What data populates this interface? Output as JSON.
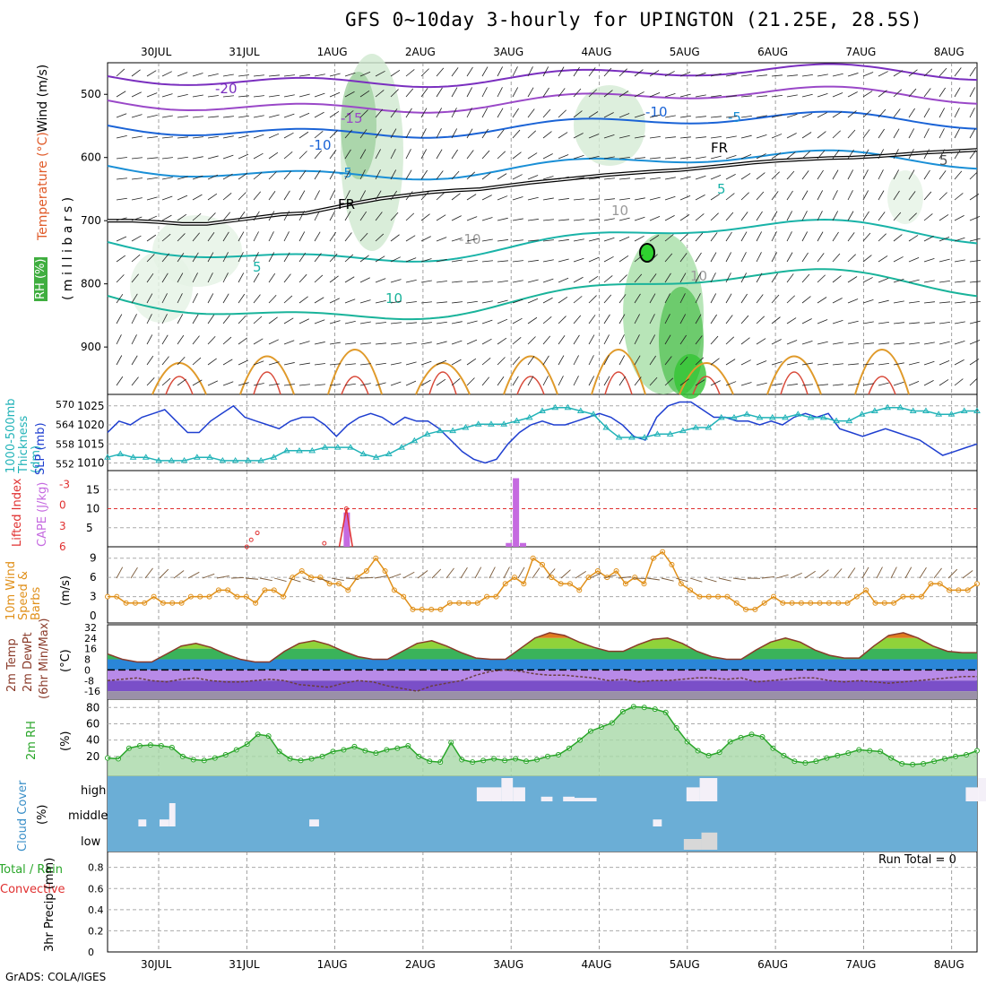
{
  "title": "GFS 0~10day 3-hourly for UPINGTON (21.25E, 28.5S)",
  "credit": "GrADS: COLA/IGES",
  "date_labels": [
    "30JUL",
    "31JUL",
    "1AUG",
    "2AUG",
    "3AUG",
    "4AUG",
    "5AUG",
    "6AUG",
    "7AUG",
    "8AUG"
  ],
  "chart_data": [
    {
      "type": "area",
      "panel": "upper-air",
      "ylabel_parts": [
        "RH (%)",
        "Temperature (°C)",
        "Wind (m/s)"
      ],
      "yunits": "( m i l l i b a r s )",
      "yticks": [
        500,
        600,
        700,
        800,
        900
      ],
      "contour_labels": [
        "-20",
        "-15",
        "-10",
        "-10",
        "-5",
        "-5",
        "5",
        "5",
        "5",
        "10",
        "FR",
        "FR",
        "10",
        "-10",
        "10"
      ],
      "freezing_level_mb": [
        700,
        700,
        702,
        705,
        705,
        700,
        695,
        690,
        688,
        680,
        672,
        665,
        660,
        655,
        652,
        650,
        645,
        640,
        636,
        632,
        628,
        625,
        622,
        620,
        616,
        612,
        608,
        605,
        603,
        601,
        600,
        598,
        595,
        592,
        590,
        588
      ],
      "ylim": [
        450,
        975
      ],
      "legend_colors": {
        "rh": "#55c455",
        "temp_cold": "#7a2fbf",
        "temp_mid": "#1a63d6",
        "temp_warm": "#19b3a8",
        "temp_hot": "#e09a2a",
        "freezing": "#000000"
      }
    },
    {
      "type": "line",
      "panel": "thickness-slp",
      "ylabel_left": "1000-500mb Thickness (dm)",
      "ylabel_right": "SLP (mb)",
      "thickness_ticks": [
        "570",
        "564",
        "558",
        "552"
      ],
      "slp_ticks": [
        "1025",
        "1020",
        "1015",
        "1010"
      ],
      "series": [
        {
          "name": "SLP (mb)",
          "color": "#1f3fd0",
          "values": [
            1018,
            1021,
            1020,
            1022,
            1023,
            1024,
            1021,
            1018,
            1018,
            1021,
            1023,
            1025,
            1022,
            1021,
            1020,
            1019,
            1021,
            1022,
            1022,
            1020,
            1017,
            1020,
            1022,
            1023,
            1022,
            1020,
            1022,
            1021,
            1021,
            1019,
            1016,
            1013,
            1011,
            1010,
            1011,
            1015,
            1018,
            1020,
            1021,
            1020,
            1020,
            1021,
            1022,
            1023,
            1022,
            1020,
            1017,
            1016,
            1022,
            1025,
            1026,
            1026,
            1024,
            1022,
            1022,
            1021,
            1021,
            1020,
            1021,
            1020,
            1022,
            1023,
            1022,
            1023,
            1019,
            1018,
            1017,
            1018,
            1019,
            1018,
            1017,
            1016,
            1014,
            1012,
            1013,
            1014,
            1015
          ]
        },
        {
          "name": "1000-500mb Thickness (dm)",
          "color": "#22b3b8",
          "values": [
            554,
            555,
            554,
            554,
            553,
            553,
            553,
            554,
            554,
            553,
            553,
            553,
            553,
            554,
            556,
            556,
            556,
            557,
            557,
            557,
            555,
            554,
            555,
            557,
            559,
            561,
            562,
            562,
            563,
            564,
            564,
            564,
            565,
            566,
            568,
            569,
            569,
            568,
            567,
            563,
            560,
            560,
            560,
            561,
            561,
            562,
            563,
            563,
            566,
            566,
            567,
            566,
            566,
            566,
            567,
            566,
            566,
            565,
            565,
            567,
            568,
            569,
            569,
            568,
            568,
            567,
            567,
            568,
            568
          ]
        }
      ]
    },
    {
      "type": "bar",
      "panel": "cape-li",
      "ylabel_left": "Lifted Index",
      "ylabel_right": "CAPE (J/kg)",
      "li_ticks": [
        "-3",
        "0",
        "3",
        "6"
      ],
      "cape_ticks": [
        "15",
        "10",
        "5"
      ],
      "cape_values": [
        0,
        0,
        0,
        0,
        0,
        0,
        0,
        0,
        0,
        0,
        0,
        0,
        0,
        0,
        0,
        0,
        0,
        0,
        0,
        0,
        0,
        0,
        0,
        0,
        0,
        0,
        0,
        0,
        0,
        0,
        0,
        0,
        0,
        0,
        0,
        0,
        0,
        0,
        0,
        0,
        0,
        0,
        0,
        0,
        0,
        0,
        0,
        0,
        0,
        0,
        0,
        0,
        0,
        0,
        0,
        0,
        0,
        0,
        0,
        0,
        0,
        0,
        0,
        0,
        0,
        0,
        0,
        0,
        0,
        0,
        0,
        0,
        0,
        0,
        0,
        0,
        0,
        0,
        0,
        0,
        0,
        0
      ],
      "cape_spikes": [
        {
          "x": 2.63,
          "value": 9
        },
        {
          "x": 4.47,
          "value": 1
        },
        {
          "x": 4.55,
          "value": 18
        },
        {
          "x": 4.63,
          "value": 1
        }
      ],
      "li_spikes": [
        {
          "x": 1.5,
          "value": 6
        },
        {
          "x": 1.55,
          "value": 5
        },
        {
          "x": 1.62,
          "value": 4
        },
        {
          "x": 2.38,
          "value": 5.5
        },
        {
          "x": 2.63,
          "value": 0.5
        }
      ]
    },
    {
      "type": "line",
      "panel": "wind",
      "ylabel": "10m Wind Speed & Barbs",
      "yunits": "(m/s)",
      "yticks": [
        "9",
        "6",
        "3",
        "0"
      ],
      "series": [
        {
          "name": "10m Wind Speed",
          "color": "#e0901a",
          "values": [
            3,
            3,
            2,
            2,
            2,
            3,
            2,
            2,
            2,
            3,
            3,
            3,
            4,
            4,
            3,
            3,
            2,
            4,
            4,
            3,
            6,
            7,
            6,
            6,
            5,
            5,
            4,
            6,
            7,
            9,
            7,
            4,
            3,
            1,
            1,
            1,
            1,
            2,
            2,
            2,
            2,
            3,
            3,
            5,
            6,
            5,
            9,
            8,
            6,
            5,
            5,
            4,
            6,
            7,
            6,
            7,
            5,
            6,
            5,
            9,
            10,
            8,
            5,
            4,
            3,
            3,
            3,
            3,
            2,
            1,
            1,
            2,
            3,
            2,
            2,
            2,
            2,
            2,
            2,
            2,
            2,
            3,
            4,
            2,
            2,
            2,
            3,
            3,
            3,
            5,
            5,
            4,
            4,
            4,
            5
          ]
        }
      ]
    },
    {
      "type": "area",
      "panel": "temperature",
      "ylabel_parts": [
        "2m Temp",
        "2m DewPt",
        "(6hr Min/Max)"
      ],
      "yunits": "(°C)",
      "yticks": [
        "32",
        "24",
        "16",
        "8",
        "0",
        "-8",
        "-16"
      ],
      "series": [
        {
          "name": "2m Temp",
          "color": "#8a3b2a",
          "values": [
            12,
            8,
            6,
            6,
            12,
            18,
            20,
            17,
            12,
            8,
            6,
            6,
            14,
            20,
            22,
            19,
            14,
            10,
            8,
            8,
            14,
            20,
            22,
            18,
            13,
            9,
            8,
            8,
            16,
            24,
            28,
            26,
            21,
            17,
            14,
            14,
            19,
            23,
            24,
            20,
            14,
            10,
            8,
            8,
            15,
            21,
            24,
            21,
            15,
            11,
            9,
            9,
            18,
            26,
            28,
            24,
            18,
            14,
            13,
            13
          ]
        },
        {
          "name": "2m DewPt",
          "color": "#6b3f3f",
          "values": [
            -8,
            -7,
            -6,
            -8,
            -9,
            -7,
            -6,
            -8,
            -9,
            -9,
            -8,
            -7,
            -8,
            -11,
            -12,
            -13,
            -10,
            -8,
            -9,
            -12,
            -14,
            -16,
            -12,
            -10,
            -8,
            -4,
            -1,
            0,
            -1,
            -3,
            -4,
            -4,
            -5,
            -6,
            -8,
            -7,
            -9,
            -8,
            -8,
            -7,
            -6,
            -6,
            -7,
            -6,
            -9,
            -8,
            -7,
            -6,
            -6,
            -8,
            -9,
            -8,
            -9,
            -10,
            -9,
            -8,
            -7,
            -6,
            -5,
            -5
          ]
        }
      ]
    },
    {
      "type": "area",
      "panel": "rh",
      "ylabel": "2m RH",
      "yunits": "(%)",
      "yticks": [
        "80",
        "60",
        "40",
        "20"
      ],
      "series": [
        {
          "name": "2m RH",
          "color": "#2aa62a",
          "values": [
            18,
            17,
            30,
            33,
            34,
            33,
            31,
            20,
            16,
            15,
            18,
            22,
            28,
            35,
            47,
            45,
            26,
            17,
            15,
            17,
            20,
            26,
            28,
            32,
            27,
            24,
            28,
            30,
            33,
            20,
            14,
            13,
            37,
            16,
            13,
            15,
            17,
            15,
            17,
            14,
            16,
            20,
            22,
            30,
            40,
            51,
            56,
            61,
            75,
            81,
            80,
            78,
            74,
            55,
            38,
            27,
            21,
            25,
            38,
            43,
            47,
            44,
            30,
            21,
            14,
            12,
            14,
            18,
            21,
            24,
            28,
            27,
            26,
            18,
            11,
            10,
            11,
            14,
            17,
            20,
            22,
            27
          ]
        }
      ]
    },
    {
      "type": "bar",
      "panel": "cloud",
      "ylabel": "Cloud Cover",
      "yunits": "(%)",
      "yticks": [
        "high",
        "middle",
        "low"
      ],
      "background_color": "#6baed6",
      "blocks": [
        {
          "layer": "middle",
          "x": [
            0.27,
            0.36
          ],
          "fill": 0.3
        },
        {
          "layer": "middle",
          "x": [
            0.51,
            0.62
          ],
          "fill": 0.3
        },
        {
          "layer": "middle",
          "x": [
            0.62,
            0.69
          ],
          "fill": 1.0
        },
        {
          "layer": "middle",
          "x": [
            2.21,
            2.32
          ],
          "fill": 0.3
        },
        {
          "layer": "high",
          "x": [
            4.11,
            4.39
          ],
          "fill": 0.6
        },
        {
          "layer": "high",
          "x": [
            4.39,
            4.52
          ],
          "fill": 1.0
        },
        {
          "layer": "high",
          "x": [
            4.52,
            4.66
          ],
          "fill": 0.6
        },
        {
          "layer": "high",
          "x": [
            4.84,
            4.97
          ],
          "fill": 0.2
        },
        {
          "layer": "high",
          "x": [
            5.09,
            5.22
          ],
          "fill": 0.2
        },
        {
          "layer": "high",
          "x": [
            5.22,
            5.47
          ],
          "fill": 0.15
        },
        {
          "layer": "middle",
          "x": [
            6.11,
            6.21
          ],
          "fill": 0.3
        },
        {
          "layer": "high",
          "x": [
            6.49,
            6.64
          ],
          "fill": 0.6
        },
        {
          "layer": "high",
          "x": [
            6.64,
            6.84
          ],
          "fill": 1.0
        },
        {
          "layer": "low",
          "x": [
            6.46,
            6.66
          ],
          "fill": 0.5
        },
        {
          "layer": "low",
          "x": [
            6.66,
            6.84
          ],
          "fill": 0.8
        },
        {
          "layer": "high",
          "x": [
            9.66,
            9.8
          ],
          "fill": 0.6
        },
        {
          "layer": "high",
          "x": [
            9.8,
            10.12
          ],
          "fill": 1.0
        },
        {
          "layer": "high",
          "x": [
            10.12,
            10.25
          ],
          "fill": 0.6
        }
      ]
    },
    {
      "type": "bar",
      "panel": "precip",
      "ylabel": "3hr Precip (mm)",
      "ylabel_total": "Total / Rain",
      "ylabel_convective": "Convective",
      "yticks": [
        "0.8",
        "0.6",
        "0.4",
        "0.2",
        "0"
      ],
      "run_total": "Run Total = 0",
      "values": []
    }
  ]
}
